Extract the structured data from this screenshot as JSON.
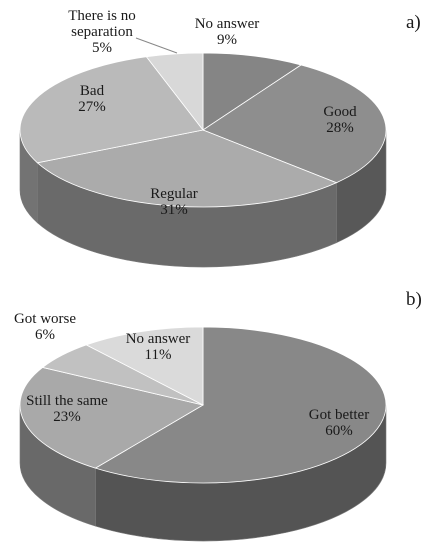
{
  "chart_data": [
    {
      "type": "pie",
      "panel": "a)",
      "slices": [
        {
          "label": [
            "No answer"
          ],
          "value": 9,
          "text": "9%",
          "color": "#858585"
        },
        {
          "label": [
            "Good"
          ],
          "value": 28,
          "text": "28%",
          "color": "#8e8e8e"
        },
        {
          "label": [
            "Regular"
          ],
          "value": 31,
          "text": "31%",
          "color": "#ababab"
        },
        {
          "label": [
            "Bad"
          ],
          "value": 27,
          "text": "27%",
          "color": "#bababa"
        },
        {
          "label": [
            "There is no",
            "separation"
          ],
          "value": 5,
          "text": "5%",
          "color": "#d8d8d8"
        }
      ]
    },
    {
      "type": "pie",
      "panel": "b)",
      "slices": [
        {
          "label": [
            "Got better"
          ],
          "value": 60,
          "text": "60%",
          "color": "#888888"
        },
        {
          "label": [
            "Still the same"
          ],
          "value": 23,
          "text": "23%",
          "color": "#a9a9a9"
        },
        {
          "label": [
            "Got worse"
          ],
          "value": 6,
          "text": "6%",
          "color": "#c1c1c1"
        },
        {
          "label": [
            "No answer"
          ],
          "value": 11,
          "text": "11%",
          "color": "#dadada"
        }
      ]
    }
  ]
}
